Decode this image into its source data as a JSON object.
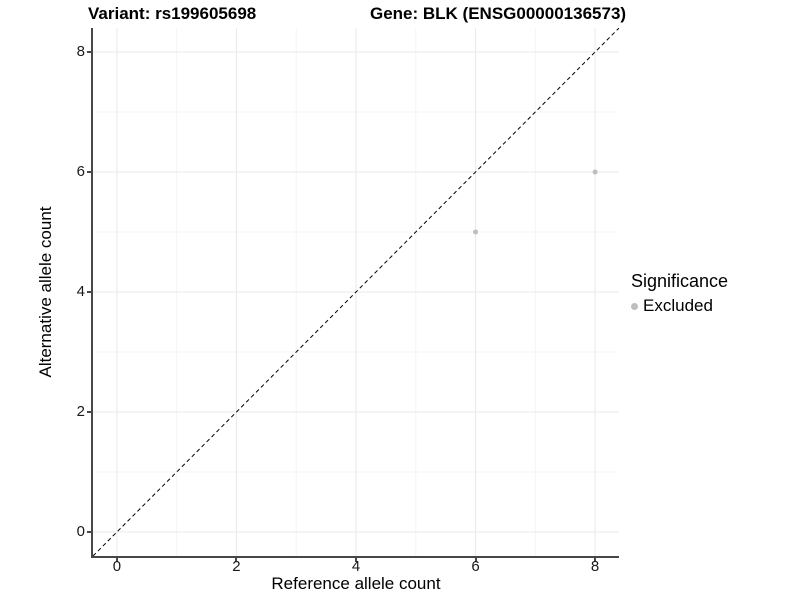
{
  "chart_data": {
    "type": "scatter",
    "title_variant": "Variant: rs199605698",
    "title_gene": "Gene: BLK (ENSG00000136573)",
    "xlabel": "Reference allele count",
    "ylabel": "Alternative allele count",
    "xlim": [
      -0.4,
      8.4
    ],
    "ylim": [
      -0.4,
      8.4
    ],
    "x_major_ticks": [
      0,
      2,
      4,
      6,
      8
    ],
    "y_major_ticks": [
      0,
      2,
      4,
      6,
      8
    ],
    "x_minor_ticks": [
      1,
      3,
      5,
      7
    ],
    "y_minor_ticks": [
      1,
      3,
      5,
      7
    ],
    "grid": "on",
    "identity_line": {
      "style": "dashed",
      "color": "#000000",
      "from": [
        -0.4,
        -0.4
      ],
      "to": [
        8.4,
        8.4
      ]
    },
    "series": [
      {
        "name": "Excluded",
        "color": "#bebebe",
        "points": [
          {
            "x": 6,
            "y": 5
          },
          {
            "x": 8,
            "y": 6
          }
        ]
      }
    ],
    "legend": {
      "title": "Significance",
      "position": "right",
      "items": [
        {
          "label": "Excluded",
          "color": "#bebebe"
        }
      ]
    },
    "colors": {
      "background": "#ffffff",
      "grid_major": "#e9e9e9",
      "grid_minor": "#f4f4f4",
      "axis_line": "#474747",
      "tick_text": "#1a1a1a",
      "title_text": "#000000"
    }
  }
}
